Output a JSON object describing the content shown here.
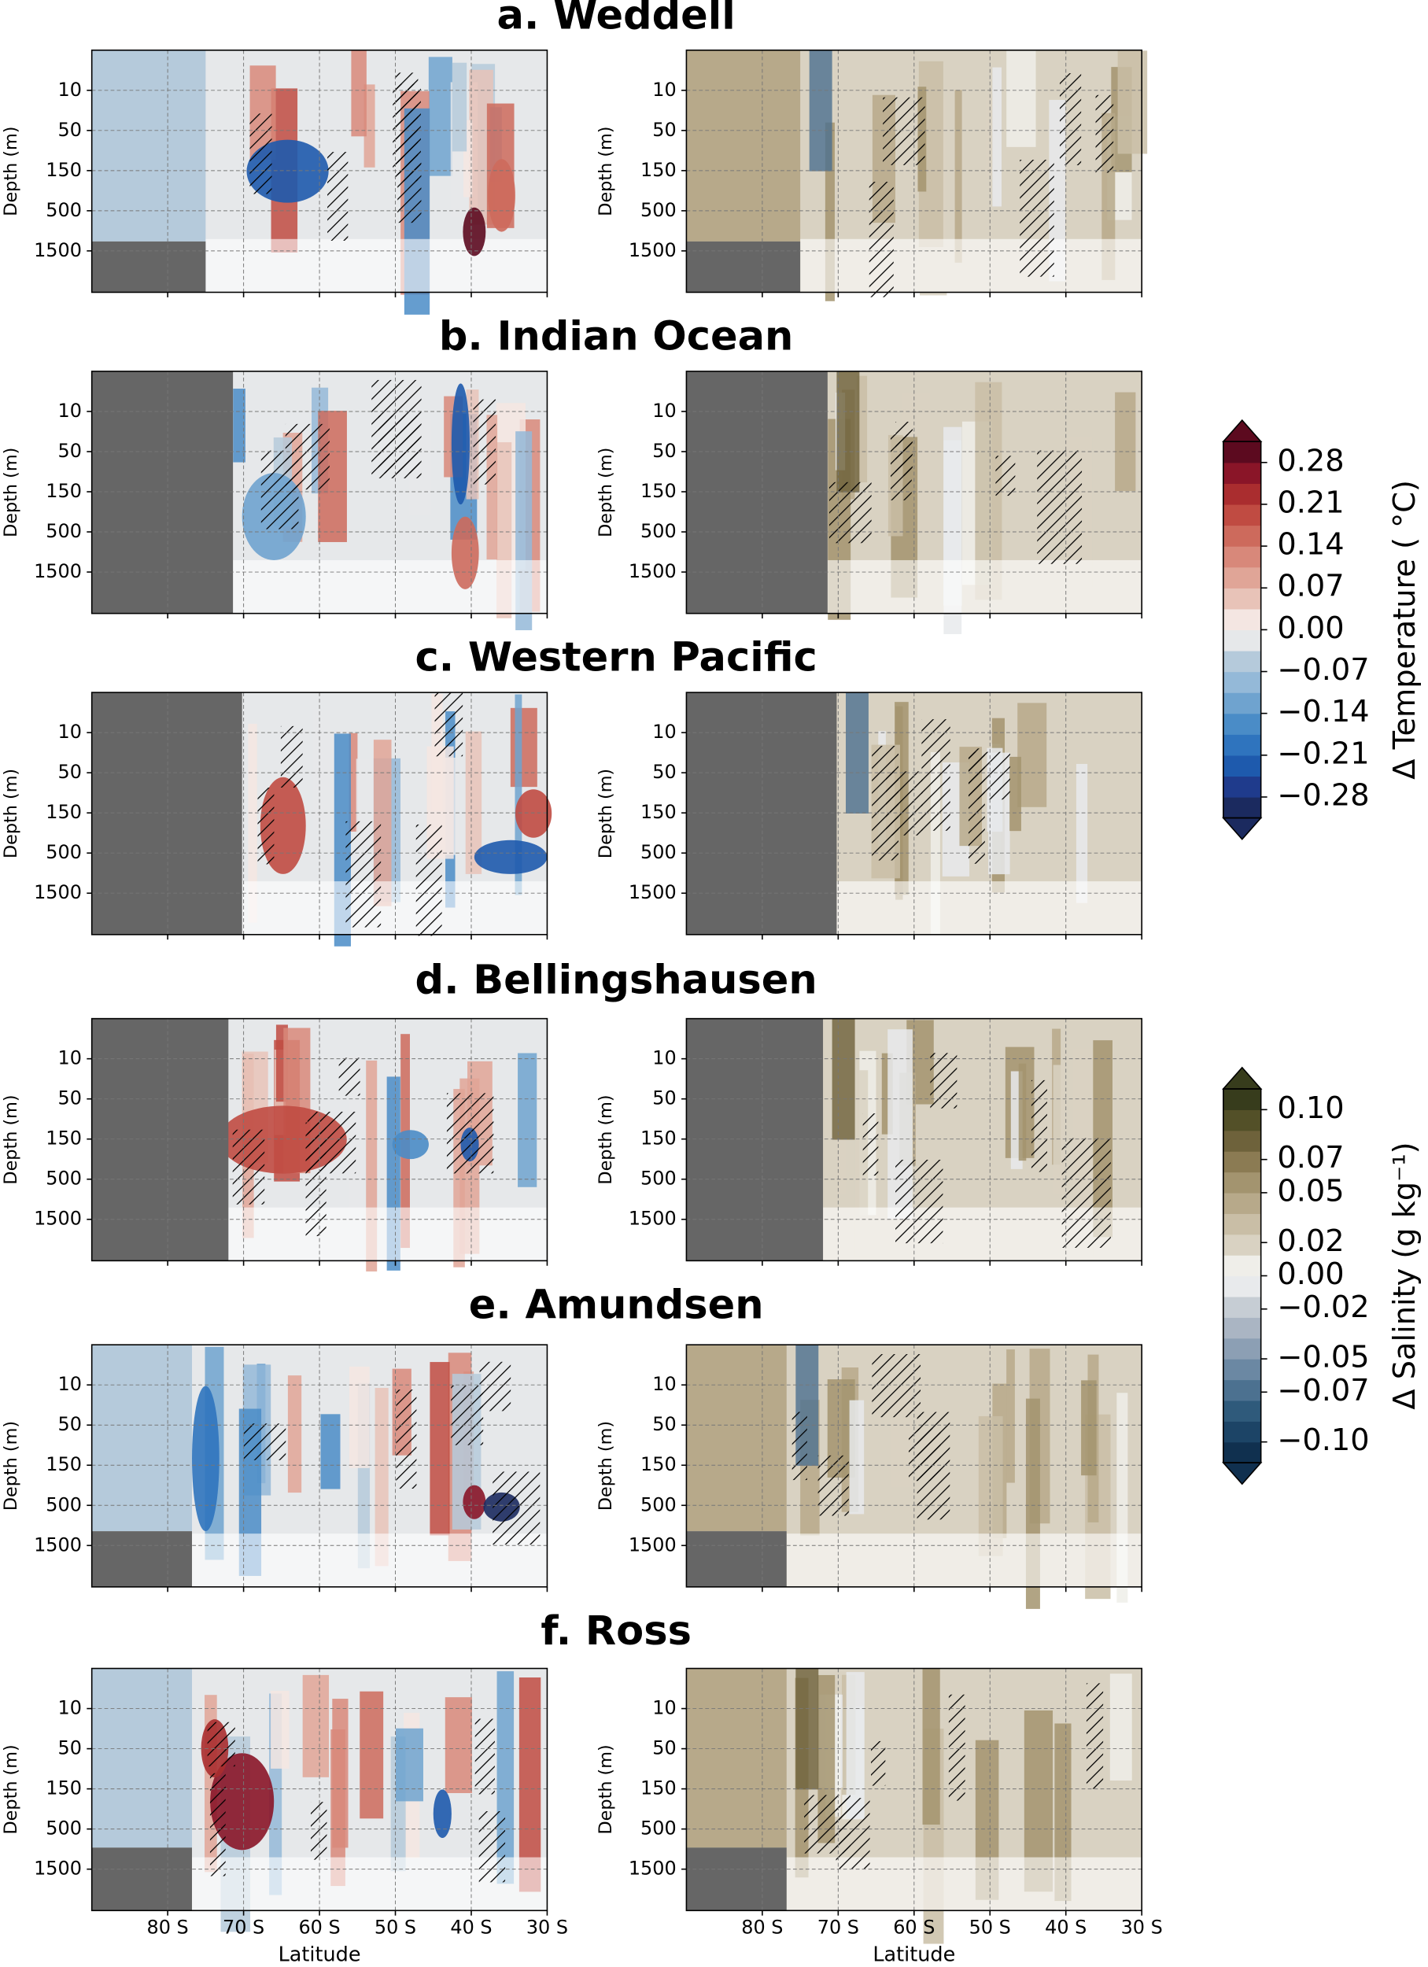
{
  "chart_data": {
    "type": "contour",
    "panels": [
      {
        "title": "a. Weddell"
      },
      {
        "title": "b. Indian Ocean"
      },
      {
        "title": "c. Western Pacific"
      },
      {
        "title": "d. Bellingshausen"
      },
      {
        "title": "e. Amundsen"
      },
      {
        "title": "f. Ross"
      }
    ],
    "ylabel": "Depth (m)",
    "yticks": [
      10,
      50,
      150,
      500,
      1500
    ],
    "xlabel": "Latitude",
    "xlim": [
      -90,
      -30
    ],
    "xticks": [
      {
        "value": -80,
        "label": "80 S"
      },
      {
        "value": -70,
        "label": "70 S"
      },
      {
        "value": -60,
        "label": "60 S"
      },
      {
        "value": -50,
        "label": "50 S"
      },
      {
        "value": -40,
        "label": "40 S"
      },
      {
        "value": -30,
        "label": "30 S"
      }
    ],
    "grid": true,
    "colorbars": [
      {
        "label": "Δ Temperature ( °C)",
        "clim": [
          -0.315,
          0.315
        ],
        "colors": [
          "#1b2a5f",
          "#1f3b8c",
          "#1e5aad",
          "#2f74be",
          "#4a8cc7",
          "#6fa3cf",
          "#94b9d8",
          "#b5cadb",
          "#e6e8ea",
          "#f4e6e2",
          "#e8c3b8",
          "#e0a597",
          "#d8887a",
          "#cd6a5c",
          "#c04b42",
          "#aa2d2f",
          "#8a1528",
          "#5c0a1f"
        ],
        "ticks": [
          0.28,
          0.21,
          0.14,
          0.07,
          {
            "value": 0,
            "label": "0.00"
          },
          {
            "value": -0.07,
            "label": "−0.07"
          },
          {
            "value": -0.14,
            "label": "−0.14"
          },
          {
            "value": -0.21,
            "label": "−0.21"
          },
          {
            "value": -0.28,
            "label": "−0.28"
          }
        ]
      },
      {
        "label": "Δ Salinity (g kg⁻¹)",
        "clim": [
          -0.1125,
          0.1125
        ],
        "colors": [
          "#10304f",
          "#1c4466",
          "#2f5a7b",
          "#4c7190",
          "#6b88a3",
          "#8c9fb4",
          "#aab5c3",
          "#c6cdd4",
          "#e8eaec",
          "#efeee9",
          "#d9d2c2",
          "#c9bea6",
          "#b7a98a",
          "#a3946f",
          "#8b7b53",
          "#6e623b",
          "#535028",
          "#373c1c"
        ],
        "ticks": [
          {
            "value": 0.1,
            "label": "0.10"
          },
          0.07,
          0.05,
          0.02,
          {
            "value": 0,
            "label": "0.00"
          },
          {
            "value": -0.02,
            "label": "−0.02"
          },
          {
            "value": -0.05,
            "label": "−0.05"
          },
          {
            "value": -0.07,
            "label": "−0.07"
          },
          {
            "value": -0.1,
            "label": "−0.10"
          }
        ]
      }
    ]
  }
}
